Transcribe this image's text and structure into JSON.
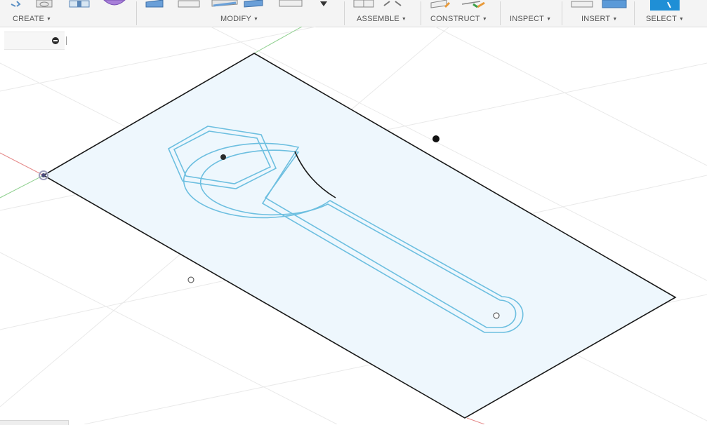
{
  "toolbar": {
    "groups": [
      {
        "label": "CREATE",
        "caret": "▼"
      },
      {
        "label": "MODIFY",
        "caret": "▼"
      },
      {
        "label": "ASSEMBLE",
        "caret": "▼"
      },
      {
        "label": "CONSTRUCT",
        "caret": "▼"
      },
      {
        "label": "INSPECT",
        "caret": "▼"
      },
      {
        "label": "INSERT",
        "caret": "▼"
      },
      {
        "label": "SELECT",
        "caret": "▼"
      }
    ],
    "icons": [
      "sketch-tool-icon",
      "create-form-icon",
      "box-tool-icon",
      "extrude-form-icon",
      "press-pull-icon",
      "fillet-icon",
      "shell-icon",
      "combine-icon",
      "move-icon",
      "dropdown-icon",
      "new-component-icon",
      "joint-icon",
      "offset-plane-icon",
      "construct-axis-icon",
      "insert-mesh-icon",
      "insert-canvas-icon",
      "select-tool-icon"
    ]
  },
  "browser_panel": {
    "icon": "minimize-icon"
  },
  "viewport": {
    "colors": {
      "plane_fill": "#eef7fd",
      "plane_edge": "#1a1a1a",
      "profile": "#6dbfe0",
      "grid": "#e9e9e9",
      "axis_x": "#e58a8a",
      "axis_y": "#8fd08f"
    },
    "objects": [
      "sketch-plane",
      "wrench-outer-profile",
      "wrench-inner-profile",
      "hexagon-outer",
      "hexagon-inner",
      "selected-arc-edge",
      "origin-point",
      "hex-center-point",
      "handle-end-point",
      "sketch-point-filled",
      "sketch-point-hollow"
    ]
  }
}
